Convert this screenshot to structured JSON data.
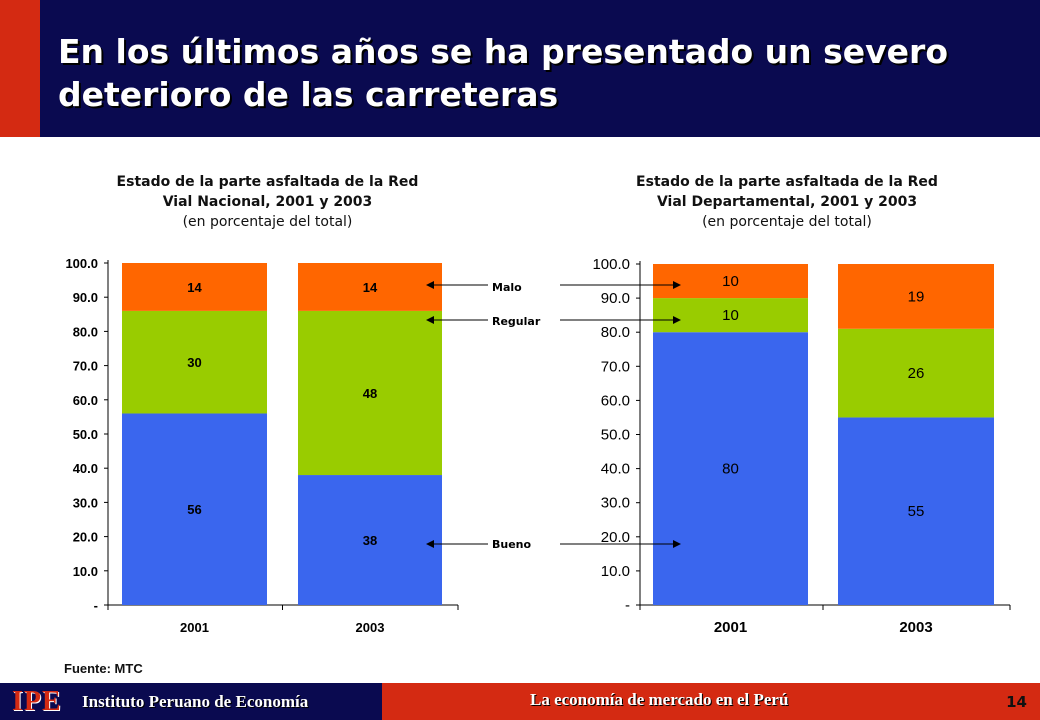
{
  "header": {
    "title": "En los últimos años se ha presentado un severo deterioro de las carreteras",
    "bg_color": "#0a0a50",
    "accent_color": "#d42a12"
  },
  "legend_labels": {
    "malo": "Malo",
    "regular": "Regular",
    "bueno": "Bueno"
  },
  "colors": {
    "bueno": "#3a66ee",
    "regular": "#99cc00",
    "malo": "#ff6600"
  },
  "chart_data": [
    {
      "type": "bar",
      "stacked": true,
      "title": "Estado de la parte asfaltada de la Red Vial Nacional, 2001 y 2003",
      "subtitle": "(en porcentaje del total)",
      "categories": [
        "2001",
        "2003"
      ],
      "series": [
        {
          "name": "Bueno",
          "values": [
            56,
            38
          ]
        },
        {
          "name": "Regular",
          "values": [
            30,
            48
          ]
        },
        {
          "name": "Malo",
          "values": [
            14,
            14
          ]
        }
      ],
      "ylim": [
        0,
        100
      ],
      "yticks": [
        "-",
        "10.0",
        "20.0",
        "30.0",
        "40.0",
        "50.0",
        "60.0",
        "70.0",
        "80.0",
        "90.0",
        "100.0"
      ],
      "data_labels": [
        [
          "56",
          "30",
          "14"
        ],
        [
          "38",
          "48",
          "14"
        ]
      ]
    },
    {
      "type": "bar",
      "stacked": true,
      "title": "Estado de la parte asfaltada de la Red Vial Departamental, 2001 y 2003",
      "subtitle": "(en porcentaje del total)",
      "categories": [
        "2001",
        "2003"
      ],
      "series": [
        {
          "name": "Bueno",
          "values": [
            80,
            55
          ]
        },
        {
          "name": "Regular",
          "values": [
            10,
            26
          ]
        },
        {
          "name": "Malo",
          "values": [
            10,
            19
          ]
        }
      ],
      "ylim": [
        0,
        100
      ],
      "yticks": [
        "-",
        "10.0",
        "20.0",
        "30.0",
        "40.0",
        "50.0",
        "60.0",
        "70.0",
        "80.0",
        "90.0",
        "100.0"
      ],
      "data_labels": [
        [
          "80",
          "10",
          "10"
        ],
        [
          "55",
          "26",
          "19"
        ]
      ]
    }
  ],
  "chart_titles": {
    "c1_line1": "Estado de la parte asfaltada de la Red",
    "c1_line2": "Vial Nacional, 2001 y 2003",
    "c1_sub": "(en porcentaje del total)",
    "c2_line1": "Estado de la parte asfaltada de la Red",
    "c2_line2": "Vial Departamental, 2001 y 2003",
    "c2_sub": "(en porcentaje del total)"
  },
  "source": "Fuente: MTC",
  "footer": {
    "logo": "IPE",
    "org_name": "Instituto Peruano de Economía",
    "slogan": "La economía de mercado en el Perú",
    "page_number": "14"
  }
}
